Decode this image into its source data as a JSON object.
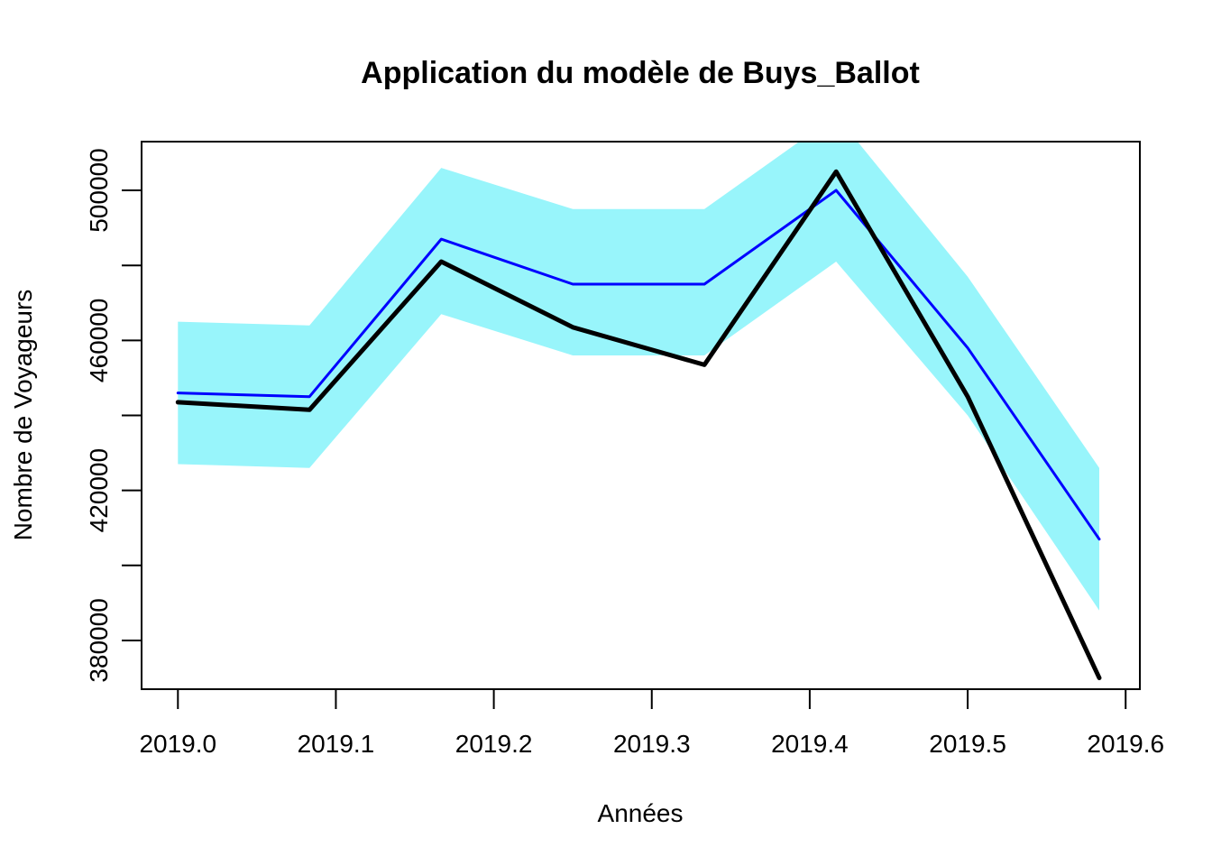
{
  "chart_data": {
    "type": "line",
    "title": "Application du modèle de Buys_Ballot",
    "xlabel": "Années",
    "ylabel": "Nombre de Voyageurs",
    "xlim": [
      2018.977,
      2019.609
    ],
    "ylim": [
      367000,
      513000
    ],
    "x_ticks": [
      2019.0,
      2019.1,
      2019.2,
      2019.3,
      2019.4,
      2019.5,
      2019.6
    ],
    "x_tick_labels": [
      "2019.0",
      "2019.1",
      "2019.2",
      "2019.3",
      "2019.4",
      "2019.5",
      "2019.6"
    ],
    "y_ticks": [
      380000,
      400000,
      420000,
      440000,
      460000,
      480000,
      500000
    ],
    "y_tick_labels": [
      "380000",
      "",
      "420000",
      "",
      "460000",
      "",
      "500000"
    ],
    "grid": false,
    "x": [
      2019.0,
      2019.0833,
      2019.1667,
      2019.25,
      2019.3333,
      2019.4167,
      2019.5,
      2019.5833
    ],
    "band": {
      "lower": [
        427000,
        426000,
        467000,
        456000,
        456000,
        481000,
        440000,
        388000
      ],
      "upper": [
        465000,
        464000,
        506000,
        495000,
        495000,
        520000,
        477000,
        426000
      ],
      "color": "#98f5fb"
    },
    "series": [
      {
        "role": "fitted",
        "color": "#0000ff",
        "width": 3,
        "values": [
          446000,
          445000,
          487000,
          475000,
          475000,
          500000,
          458000,
          407000
        ]
      },
      {
        "role": "observed",
        "color": "#000000",
        "width": 5,
        "values": [
          443500,
          441500,
          481000,
          463500,
          453500,
          505000,
          445000,
          370000
        ]
      }
    ]
  }
}
